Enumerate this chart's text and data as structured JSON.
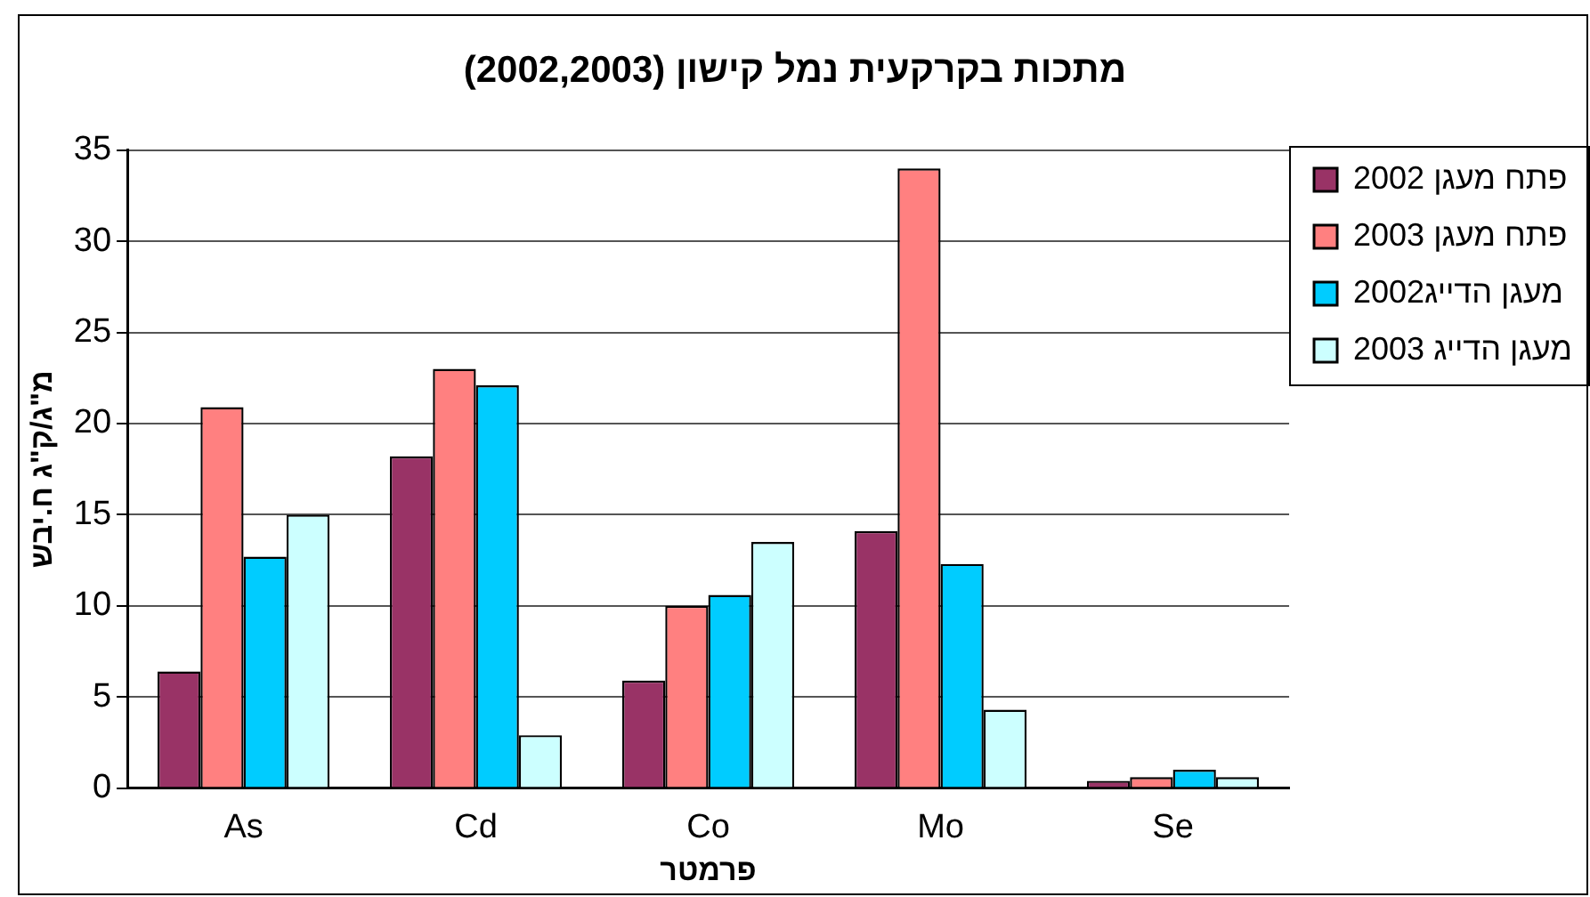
{
  "chart_data": {
    "type": "bar",
    "title": "מתכות בקרקעית נמל קישון  (2002,2003)",
    "xlabel": "פרמטר",
    "ylabel": "מ\"ג/ק\"ג ח.יבש",
    "categories": [
      "As",
      "Cd",
      "Co",
      "Mo",
      "Se"
    ],
    "series": [
      {
        "name": "פתח מעגן 2002",
        "color": "#993366",
        "values": [
          6.4,
          18.2,
          5.9,
          14.1,
          0.4
        ]
      },
      {
        "name": "פתח מעגן 2003",
        "color": "#ff8080",
        "values": [
          20.9,
          23.0,
          10.0,
          34.0,
          0.6
        ]
      },
      {
        "name": "מעגן הדייג2002",
        "color": "#00ccff",
        "values": [
          12.7,
          22.1,
          10.6,
          12.3,
          1.0
        ]
      },
      {
        "name": "מעגן הדייג 2003",
        "color": "#ccffff",
        "values": [
          15.0,
          2.9,
          13.5,
          4.3,
          0.6
        ]
      }
    ],
    "ylim": [
      0,
      35
    ],
    "yticks": [
      0,
      5,
      10,
      15,
      20,
      25,
      30,
      35
    ],
    "grid": "y",
    "legend": "right"
  }
}
